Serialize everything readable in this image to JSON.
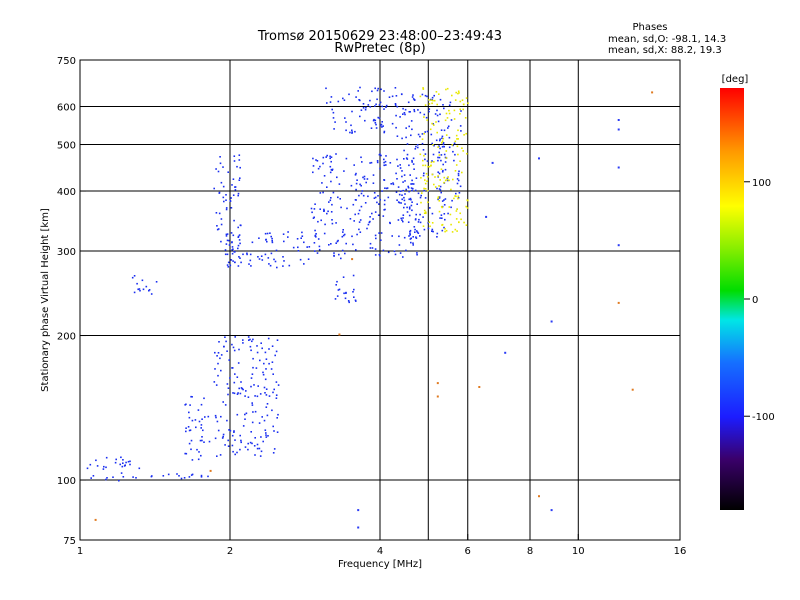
{
  "chart_data": {
    "type": "scatter",
    "title": "Tromsø 20150629 23:48:00–23:49:43",
    "subtitle": "RwPretec (8p)",
    "xlabel": "Frequency [MHz]",
    "ylabel": "Stationary phase Virtual Height [km]",
    "x_scale": "log",
    "y_scale": "log",
    "xlim": [
      1,
      16
    ],
    "ylim": [
      75,
      750
    ],
    "x_ticks": [
      1,
      2,
      4,
      6,
      8,
      10,
      16
    ],
    "x_tick_labels": [
      "1",
      "2",
      "4",
      "6",
      "8",
      "10",
      "16"
    ],
    "y_ticks": [
      75,
      100,
      200,
      300,
      400,
      500,
      600,
      750
    ],
    "y_tick_labels": [
      "75",
      "100",
      "200",
      "300",
      "400",
      "500",
      "600",
      "750"
    ],
    "x_gridlines": [
      2,
      4,
      5,
      6,
      8,
      10
    ],
    "y_gridlines": [
      100,
      200,
      300,
      400,
      500,
      600
    ],
    "phase_info": {
      "heading": "Phases",
      "line_o": "mean, sd,O: -98.1, 14.3",
      "line_x": "mean, sd,X:  88.2, 19.3"
    },
    "colorbar": {
      "label": "[deg]",
      "range": [
        -180,
        180
      ],
      "ticks": [
        100,
        0,
        -100
      ],
      "tick_labels": [
        "100",
        "0",
        "-100"
      ]
    },
    "series": [
      {
        "mode": "O",
        "phase_deg": -100,
        "color": "#1a2ff0",
        "clusters": [
          {
            "f": [
              1.0,
              1.32
            ],
            "h": [
              100,
              112
            ]
          },
          {
            "f": [
              1.38,
              1.85
            ],
            "h": [
              101,
              104
            ]
          },
          {
            "f": [
              1.27,
              1.42
            ],
            "h": [
              245,
              275
            ]
          },
          {
            "f": [
              1.6,
              1.82
            ],
            "h": [
              110,
              150
            ]
          },
          {
            "f": [
              1.85,
              2.5
            ],
            "h": [
              112,
              200
            ]
          },
          {
            "f": [
              1.85,
              2.1
            ],
            "h": [
              280,
              480
            ]
          },
          {
            "f": [
              1.95,
              2.9
            ],
            "h": [
              275,
              330
            ]
          },
          {
            "f": [
              2.9,
              4.8
            ],
            "h": [
              290,
              480
            ]
          },
          {
            "f": [
              3.1,
              4.3
            ],
            "h": [
              520,
              660
            ]
          },
          {
            "f": [
              4.3,
              5.4
            ],
            "h": [
              320,
              640
            ]
          },
          {
            "f": [
              3.2,
              3.6
            ],
            "h": [
              230,
              270
            ]
          },
          {
            "f": [
              5.2,
              5.8
            ],
            "h": [
              360,
              620
            ]
          }
        ]
      },
      {
        "mode": "X",
        "phase_deg": 90,
        "color": "#e8e800",
        "clusters": [
          {
            "f": [
              4.8,
              6.0
            ],
            "h": [
              330,
              660
            ]
          }
        ]
      },
      {
        "mode": "scattered",
        "color": "#e07a20",
        "points": [
          {
            "f": 1.07,
            "h": 83
          },
          {
            "f": 1.82,
            "h": 105
          },
          {
            "f": 3.3,
            "h": 202
          },
          {
            "f": 3.5,
            "h": 290
          },
          {
            "f": 5.2,
            "h": 160
          },
          {
            "f": 5.2,
            "h": 150
          },
          {
            "f": 6.3,
            "h": 157
          },
          {
            "f": 8.3,
            "h": 93
          },
          {
            "f": 12.8,
            "h": 155
          },
          {
            "f": 14.0,
            "h": 645
          },
          {
            "f": 12.0,
            "h": 235
          }
        ]
      },
      {
        "mode": "isolated",
        "color": "#2a3bf5",
        "points": [
          {
            "f": 3.6,
            "h": 87
          },
          {
            "f": 3.6,
            "h": 80
          },
          {
            "f": 6.5,
            "h": 355
          },
          {
            "f": 7.1,
            "h": 185
          },
          {
            "f": 8.8,
            "h": 215
          },
          {
            "f": 8.8,
            "h": 87
          },
          {
            "f": 12.0,
            "h": 565
          },
          {
            "f": 12.0,
            "h": 540
          },
          {
            "f": 12.0,
            "h": 450
          },
          {
            "f": 12.0,
            "h": 310
          },
          {
            "f": 8.3,
            "h": 470
          },
          {
            "f": 6.7,
            "h": 460
          }
        ]
      }
    ]
  }
}
